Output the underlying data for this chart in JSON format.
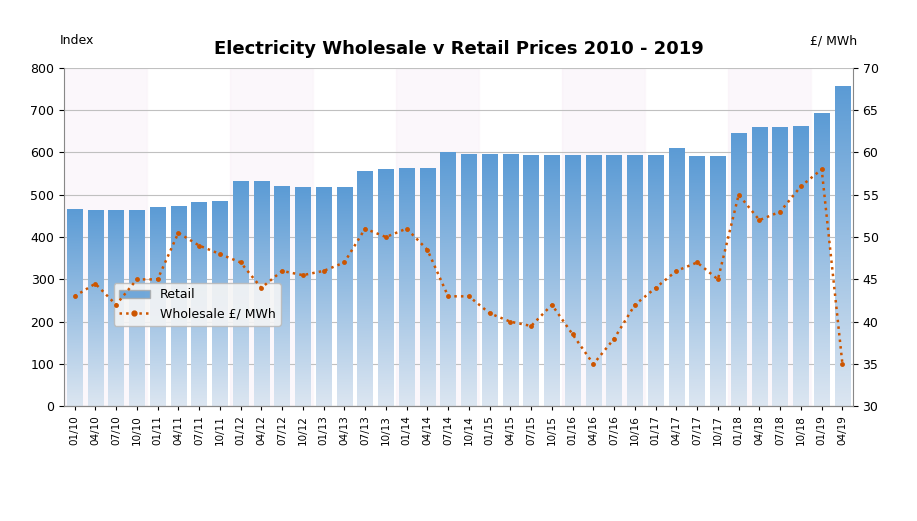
{
  "title": "Electricity Wholesale v Retail Prices 2010 - 2019",
  "left_ylabel": "Index",
  "right_ylabel": "£/ MWh",
  "bar_color_top": "#5b9bd5",
  "bar_color_bottom": "#dce6f1",
  "background_color": "#ffffff",
  "categories": [
    "01/10",
    "04/10",
    "07/10",
    "10/10",
    "01/11",
    "04/11",
    "07/11",
    "10/11",
    "01/12",
    "04/12",
    "07/12",
    "10/12",
    "01/13",
    "04/13",
    "07/13",
    "10/13",
    "01/14",
    "04/14",
    "07/14",
    "10/14",
    "01/15",
    "04/15",
    "07/15",
    "10/15",
    "01/16",
    "04/16",
    "07/16",
    "10/16",
    "01/17",
    "04/17",
    "07/17",
    "10/17",
    "01/18",
    "04/18",
    "07/18",
    "10/18",
    "01/19",
    "04/19"
  ],
  "retail_values": [
    465,
    462,
    462,
    462,
    468,
    472,
    480,
    482,
    530,
    530,
    518,
    516,
    515,
    515,
    555,
    558,
    560,
    560,
    598,
    593,
    593,
    593,
    592,
    592,
    592,
    592,
    592,
    592,
    592,
    608,
    590,
    590,
    643,
    657,
    657,
    660,
    692,
    755
  ],
  "wholesale_values": [
    43,
    44.5,
    42,
    45,
    45,
    50.5,
    49,
    48,
    47,
    44,
    46,
    45.5,
    46,
    47,
    51,
    50,
    51,
    48.5,
    43,
    43,
    41,
    40,
    39.5,
    42,
    38.5,
    35,
    38,
    42,
    44,
    46,
    47,
    45,
    55,
    52,
    53,
    56,
    58,
    35
  ],
  "left_ylim": [
    0,
    800
  ],
  "right_ylim": [
    30,
    70
  ],
  "left_yticks": [
    0,
    100,
    200,
    300,
    400,
    500,
    600,
    700,
    800
  ],
  "right_yticks": [
    30,
    35,
    40,
    45,
    50,
    55,
    60,
    65,
    70
  ],
  "grid_color": "#c0c0c0",
  "dotted_color": "#cc5500",
  "legend_retail_color": "#5b9bd5",
  "band_colors": [
    "#f2e0f0",
    "#ffffff"
  ],
  "year_starts": [
    0,
    4,
    8,
    12,
    16,
    20,
    24,
    28,
    32,
    36
  ]
}
